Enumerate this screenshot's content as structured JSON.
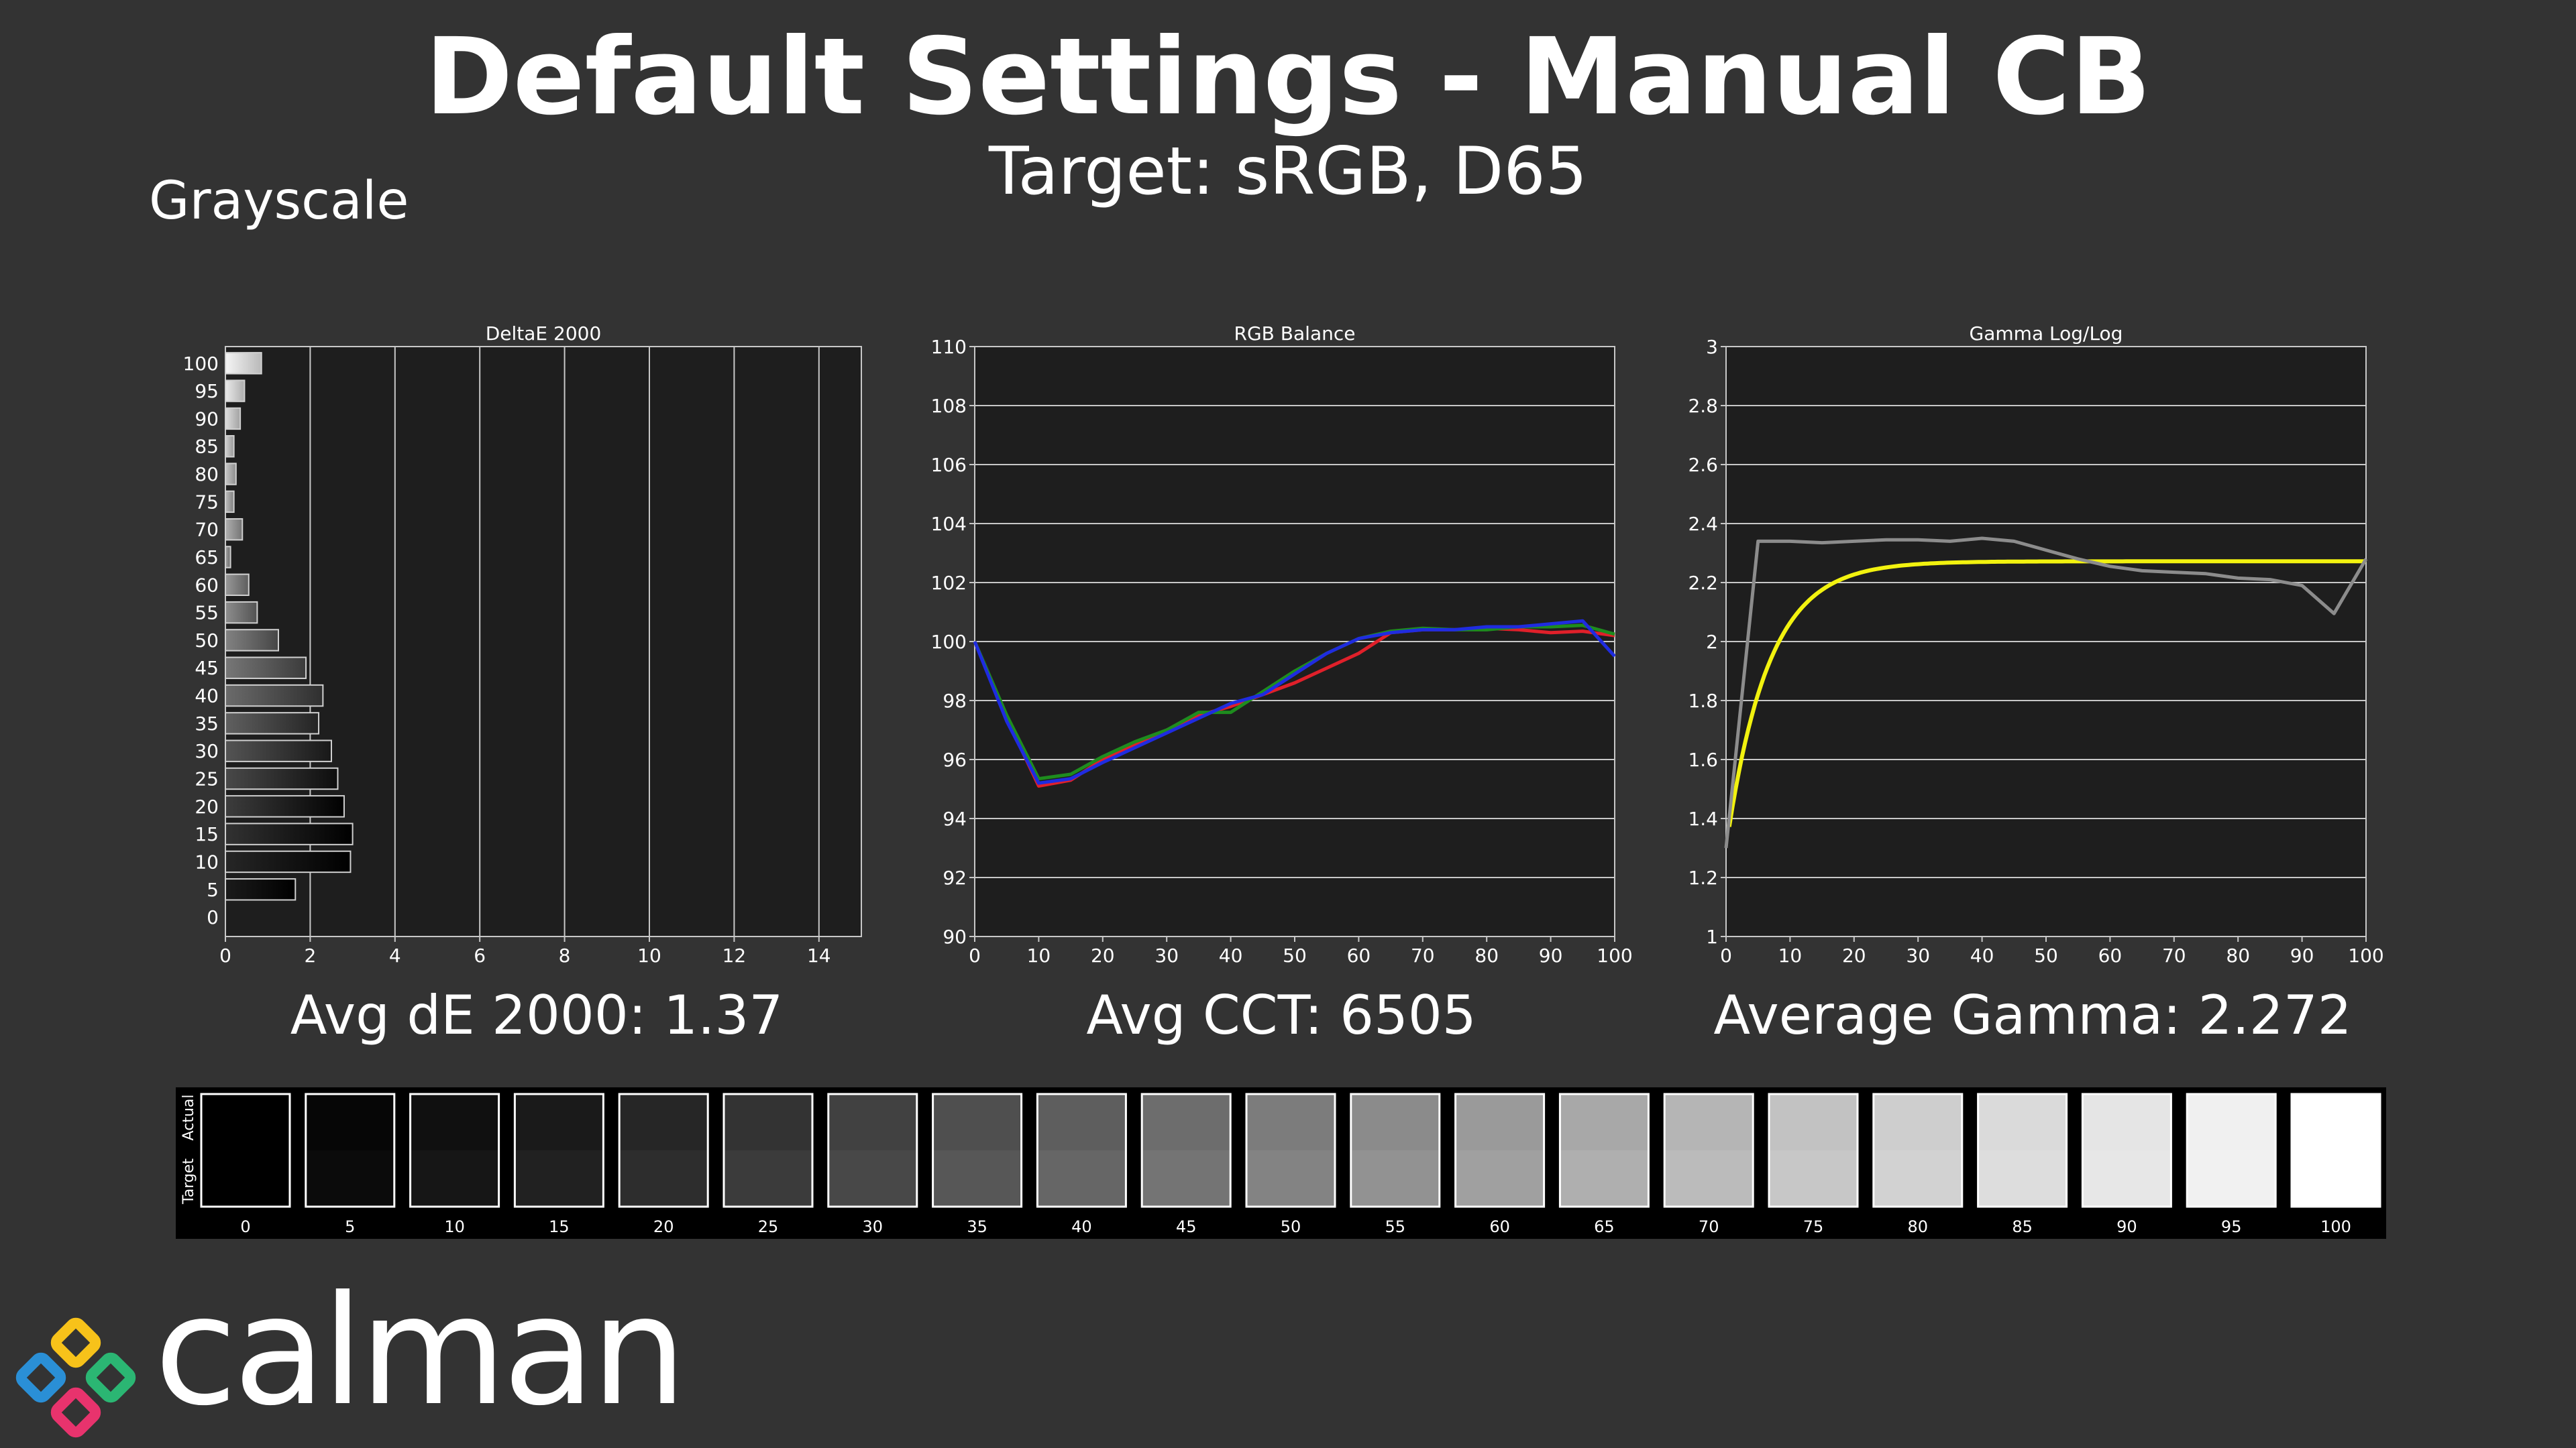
{
  "title": "Default Settings - Manual CB",
  "subtitle": "Target: sRGB, D65",
  "section": "Grayscale",
  "stats": {
    "avg_de": "Avg dE 2000: 1.37",
    "avg_cct": "Avg CCT: 6505",
    "avg_gamma": "Average Gamma: 2.272"
  },
  "swatches": {
    "actual_label": "Actual",
    "target_label": "Target",
    "items": [
      {
        "label": "0",
        "actual": "#000000",
        "target": "#000000"
      },
      {
        "label": "5",
        "actual": "#060606",
        "target": "#0b0b0b"
      },
      {
        "label": "10",
        "actual": "#101010",
        "target": "#161616"
      },
      {
        "label": "15",
        "actual": "#1a1a1a",
        "target": "#212121"
      },
      {
        "label": "20",
        "actual": "#262626",
        "target": "#2d2d2d"
      },
      {
        "label": "25",
        "actual": "#333333",
        "target": "#3b3b3b"
      },
      {
        "label": "30",
        "actual": "#414141",
        "target": "#484848"
      },
      {
        "label": "35",
        "actual": "#4f4f4f",
        "target": "#575757"
      },
      {
        "label": "40",
        "actual": "#5e5e5e",
        "target": "#666666"
      },
      {
        "label": "45",
        "actual": "#6d6d6d",
        "target": "#747474"
      },
      {
        "label": "50",
        "actual": "#7c7c7c",
        "target": "#838383"
      },
      {
        "label": "55",
        "actual": "#8b8b8b",
        "target": "#929292"
      },
      {
        "label": "60",
        "actual": "#9a9a9a",
        "target": "#a0a0a0"
      },
      {
        "label": "65",
        "actual": "#a8a8a8",
        "target": "#afafaf"
      },
      {
        "label": "70",
        "actual": "#b5b5b5",
        "target": "#bbbbbb"
      },
      {
        "label": "75",
        "actual": "#c2c2c2",
        "target": "#c7c7c7"
      },
      {
        "label": "80",
        "actual": "#cecece",
        "target": "#d2d2d2"
      },
      {
        "label": "85",
        "actual": "#dadada",
        "target": "#dddddd"
      },
      {
        "label": "90",
        "actual": "#e5e5e5",
        "target": "#e7e7e7"
      },
      {
        "label": "95",
        "actual": "#f0f0f0",
        "target": "#f1f1f1"
      },
      {
        "label": "100",
        "actual": "#ffffff",
        "target": "#ffffff"
      }
    ]
  },
  "logo": {
    "text": "calman",
    "colors": [
      "#f7c21a",
      "#2bb673",
      "#e8336d",
      "#2a8fd6"
    ]
  },
  "colors": {
    "background": "#333333",
    "plot_bg": "#1e1e1e",
    "grid": "#c8c8c8",
    "red": "#e0202a",
    "green": "#1e8c1e",
    "blue": "#1f2ce0",
    "gamma_target": "#f2f20f",
    "gamma_actual": "#8c8c8c"
  },
  "chart_data": [
    {
      "type": "bar",
      "orientation": "horizontal",
      "title": "DeltaE 2000",
      "categories": [
        "0",
        "5",
        "10",
        "15",
        "20",
        "25",
        "30",
        "35",
        "40",
        "45",
        "50",
        "55",
        "60",
        "65",
        "70",
        "75",
        "80",
        "85",
        "90",
        "95",
        "100"
      ],
      "values": [
        0.0,
        1.65,
        2.95,
        3.0,
        2.8,
        2.65,
        2.5,
        2.2,
        2.3,
        1.9,
        1.25,
        0.75,
        0.55,
        0.12,
        0.4,
        0.2,
        0.25,
        0.2,
        0.35,
        0.45,
        0.85
      ],
      "xlim": [
        0,
        15
      ],
      "xticks": [
        "0",
        "2",
        "4",
        "6",
        "8",
        "10",
        "12",
        "14"
      ]
    },
    {
      "type": "line",
      "title": "RGB Balance",
      "x": [
        0,
        5,
        10,
        15,
        20,
        25,
        30,
        35,
        40,
        45,
        50,
        55,
        60,
        65,
        70,
        75,
        80,
        85,
        90,
        95,
        100
      ],
      "series": [
        {
          "color": "red",
          "values": [
            100,
            97.4,
            95.1,
            95.3,
            96.0,
            96.5,
            97.0,
            97.5,
            97.8,
            98.2,
            98.6,
            99.1,
            99.6,
            100.3,
            100.4,
            100.4,
            100.45,
            100.4,
            100.3,
            100.35,
            100.2
          ]
        },
        {
          "color": "green",
          "values": [
            100,
            97.5,
            95.35,
            95.5,
            96.1,
            96.6,
            97.0,
            97.6,
            97.6,
            98.3,
            99.0,
            99.6,
            100.1,
            100.35,
            100.45,
            100.4,
            100.4,
            100.5,
            100.5,
            100.55,
            100.25
          ]
        },
        {
          "color": "blue",
          "values": [
            100,
            97.3,
            95.2,
            95.35,
            95.9,
            96.4,
            96.9,
            97.4,
            97.9,
            98.2,
            98.9,
            99.6,
            100.1,
            100.3,
            100.4,
            100.4,
            100.5,
            100.5,
            100.6,
            100.7,
            99.5
          ]
        }
      ],
      "xlim": [
        0,
        100
      ],
      "ylim": [
        90,
        110
      ],
      "xticks": [
        "0",
        "10",
        "20",
        "30",
        "40",
        "50",
        "60",
        "70",
        "80",
        "90",
        "100"
      ],
      "yticks": [
        "90",
        "92",
        "94",
        "96",
        "98",
        "100",
        "102",
        "104",
        "106",
        "108",
        "110"
      ]
    },
    {
      "type": "line",
      "title": "Gamma Log/Log",
      "x": [
        0,
        5,
        10,
        15,
        20,
        25,
        30,
        35,
        40,
        45,
        50,
        55,
        60,
        65,
        70,
        75,
        80,
        85,
        90,
        95,
        100
      ],
      "series": [
        {
          "color": "gray",
          "values": [
            1.3,
            2.34,
            2.34,
            2.335,
            2.34,
            2.345,
            2.345,
            2.34,
            2.35,
            2.34,
            2.31,
            2.28,
            2.255,
            2.24,
            2.235,
            2.23,
            2.215,
            2.21,
            2.19,
            2.095,
            2.28
          ]
        }
      ],
      "reference": {
        "color": "yellow",
        "gamma": 2.272
      },
      "xlim": [
        0,
        100
      ],
      "ylim": [
        1,
        3
      ],
      "xticks": [
        "0",
        "10",
        "20",
        "30",
        "40",
        "50",
        "60",
        "70",
        "80",
        "90",
        "100"
      ],
      "yticks": [
        "1",
        "1.2",
        "1.4",
        "1.6",
        "1.8",
        "2",
        "2.2",
        "2.4",
        "2.6",
        "2.8",
        "3"
      ]
    }
  ]
}
